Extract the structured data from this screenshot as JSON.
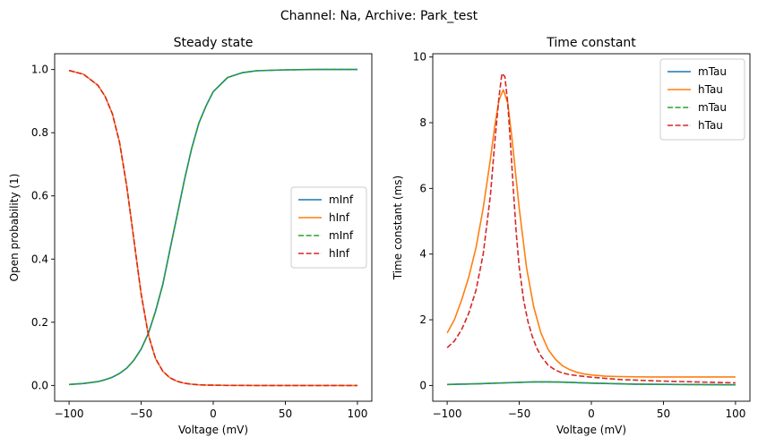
{
  "figure": {
    "suptitle": "Channel: Na, Archive: Park_test"
  },
  "chart_data": [
    {
      "type": "line",
      "title": "Steady state",
      "xlabel": "Voltage (mV)",
      "ylabel": "Open probability (1)",
      "xlim": [
        -110,
        110
      ],
      "ylim": [
        -0.05,
        1.05
      ],
      "xticks": [
        -100,
        -50,
        0,
        50,
        100
      ],
      "yticks": [
        0.0,
        0.2,
        0.4,
        0.6,
        0.8,
        1.0
      ],
      "xtick_labels": [
        "−100",
        "−50",
        "0",
        "50",
        "100"
      ],
      "ytick_labels": [
        "0.0",
        "0.2",
        "0.4",
        "0.6",
        "0.8",
        "1.0"
      ],
      "legend_position": "center-right",
      "x": [
        -100,
        -90,
        -80,
        -75,
        -70,
        -65,
        -60,
        -55,
        -50,
        -45,
        -40,
        -35,
        -30,
        -25,
        -20,
        -15,
        -10,
        -5,
        0,
        10,
        20,
        30,
        50,
        70,
        100
      ],
      "series": [
        {
          "name": "mInf",
          "color": "#1f77b4",
          "style": "solid",
          "values": [
            0.003,
            0.006,
            0.012,
            0.018,
            0.026,
            0.038,
            0.055,
            0.08,
            0.115,
            0.165,
            0.235,
            0.32,
            0.43,
            0.54,
            0.65,
            0.75,
            0.83,
            0.885,
            0.93,
            0.975,
            0.99,
            0.996,
            0.999,
            1.0,
            1.0
          ]
        },
        {
          "name": "hInf",
          "color": "#ff7f0e",
          "style": "solid",
          "values": [
            0.997,
            0.985,
            0.95,
            0.915,
            0.86,
            0.77,
            0.63,
            0.46,
            0.29,
            0.16,
            0.085,
            0.045,
            0.024,
            0.013,
            0.007,
            0.004,
            0.002,
            0.001,
            0.0007,
            0.0002,
            0.0001,
            0.0,
            0.0,
            0.0,
            0.0
          ]
        },
        {
          "name": "mInf",
          "color": "#2ca02c",
          "style": "dashed",
          "values": [
            0.003,
            0.006,
            0.012,
            0.018,
            0.026,
            0.038,
            0.055,
            0.08,
            0.115,
            0.165,
            0.235,
            0.32,
            0.43,
            0.54,
            0.65,
            0.75,
            0.83,
            0.885,
            0.93,
            0.975,
            0.99,
            0.996,
            0.999,
            1.0,
            1.0
          ]
        },
        {
          "name": "hInf",
          "color": "#d62728",
          "style": "dashed",
          "values": [
            0.997,
            0.985,
            0.95,
            0.915,
            0.86,
            0.77,
            0.63,
            0.46,
            0.29,
            0.16,
            0.085,
            0.045,
            0.024,
            0.013,
            0.007,
            0.004,
            0.002,
            0.001,
            0.0007,
            0.0002,
            0.0001,
            0.0,
            0.0,
            0.0,
            0.0
          ]
        }
      ]
    },
    {
      "type": "line",
      "title": "Time constant",
      "xlabel": "Voltage (mV)",
      "ylabel": "Time constant (ms)",
      "xlim": [
        -110,
        110
      ],
      "ylim": [
        -0.48,
        10.1
      ],
      "xticks": [
        -100,
        -50,
        0,
        50,
        100
      ],
      "yticks": [
        0,
        2,
        4,
        6,
        8,
        10
      ],
      "xtick_labels": [
        "−100",
        "−50",
        "0",
        "50",
        "100"
      ],
      "ytick_labels": [
        "0",
        "2",
        "4",
        "6",
        "8",
        "10"
      ],
      "legend_position": "top-right",
      "series": [
        {
          "name": "mTau",
          "color": "#1f77b4",
          "style": "solid",
          "x": [
            -100,
            -80,
            -60,
            -40,
            -30,
            -20,
            0,
            30,
            60,
            100
          ],
          "values": [
            0.03,
            0.05,
            0.08,
            0.11,
            0.11,
            0.1,
            0.07,
            0.04,
            0.03,
            0.02
          ]
        },
        {
          "name": "hTau",
          "color": "#ff7f0e",
          "style": "solid",
          "x": [
            -100,
            -95,
            -90,
            -85,
            -80,
            -75,
            -70,
            -67,
            -64,
            -61,
            -58,
            -55,
            -50,
            -45,
            -40,
            -35,
            -30,
            -25,
            -20,
            -15,
            -10,
            -5,
            0,
            10,
            20,
            40,
            60,
            100
          ],
          "values": [
            1.6,
            2.0,
            2.6,
            3.3,
            4.2,
            5.4,
            6.9,
            7.9,
            8.7,
            9.0,
            8.6,
            7.5,
            5.4,
            3.6,
            2.4,
            1.6,
            1.1,
            0.8,
            0.6,
            0.48,
            0.4,
            0.35,
            0.32,
            0.28,
            0.27,
            0.26,
            0.26,
            0.26
          ]
        },
        {
          "name": "mTau",
          "color": "#2ca02c",
          "style": "dashed",
          "x": [
            -100,
            -80,
            -60,
            -40,
            -30,
            -20,
            0,
            30,
            60,
            100
          ],
          "values": [
            0.03,
            0.05,
            0.08,
            0.11,
            0.11,
            0.1,
            0.07,
            0.04,
            0.03,
            0.02
          ]
        },
        {
          "name": "hTau",
          "color": "#d62728",
          "style": "dashed",
          "x": [
            -100,
            -95,
            -90,
            -85,
            -80,
            -75,
            -70,
            -67,
            -64,
            -62,
            -60,
            -58,
            -56,
            -54,
            -52,
            -50,
            -47,
            -44,
            -41,
            -38,
            -35,
            -30,
            -25,
            -20,
            -15,
            -10,
            0,
            20,
            50,
            100
          ],
          "values": [
            1.15,
            1.35,
            1.7,
            2.2,
            2.9,
            4.0,
            5.8,
            7.4,
            8.8,
            9.5,
            9.4,
            8.6,
            7.3,
            5.9,
            4.6,
            3.6,
            2.6,
            1.95,
            1.5,
            1.15,
            0.9,
            0.62,
            0.47,
            0.38,
            0.33,
            0.3,
            0.25,
            0.18,
            0.13,
            0.08
          ]
        }
      ]
    }
  ]
}
